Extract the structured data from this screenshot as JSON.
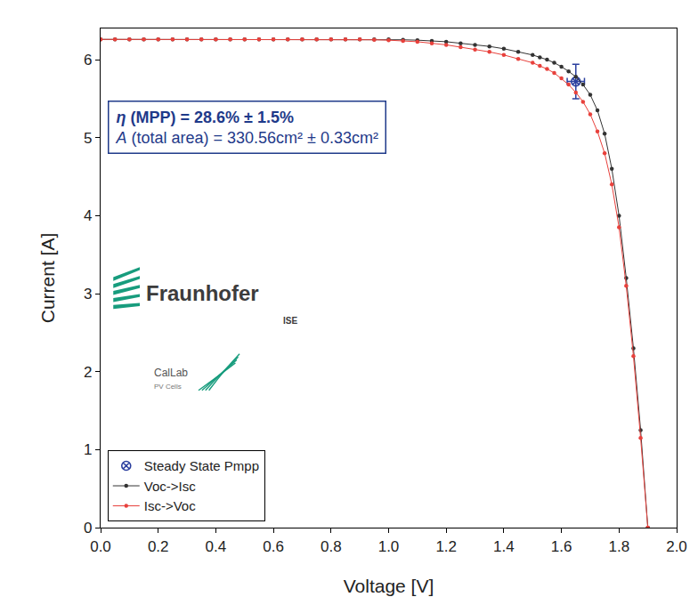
{
  "chart_data": {
    "type": "line",
    "x_label": "Voltage [V]",
    "y_label": "Current [A]",
    "xlim": [
      0,
      2.0
    ],
    "ylim": [
      0,
      6.4
    ],
    "xticks": [
      {
        "value": 0,
        "label": "0.0"
      },
      0.2,
      0.4,
      0.6,
      0.8,
      {
        "value": 1,
        "label": "1.0"
      },
      1.2,
      1.4,
      1.6,
      1.8,
      {
        "value": 2,
        "label": "2.0"
      }
    ],
    "yticks": [
      0,
      1,
      2,
      3,
      4,
      5,
      6
    ],
    "grid": false,
    "legend": "lower left",
    "x": [
      0,
      0.05,
      0.1,
      0.15,
      0.2,
      0.25,
      0.3,
      0.35,
      0.4,
      0.45,
      0.5,
      0.55,
      0.6,
      0.65,
      0.7,
      0.75,
      0.8,
      0.85,
      0.9,
      0.95,
      1.0,
      1.05,
      1.1,
      1.15,
      1.2,
      1.25,
      1.3,
      1.35,
      1.4,
      1.45,
      1.5,
      1.525,
      1.55,
      1.575,
      1.6,
      1.625,
      1.65,
      1.675,
      1.7,
      1.725,
      1.75,
      1.775,
      1.8,
      1.825,
      1.85,
      1.875,
      1.9
    ],
    "series": [
      {
        "name": "Steady State Pmpp",
        "type": "scatter",
        "color": "#2b3f9e",
        "marker": "circle-x-open",
        "x": [
          1.65
        ],
        "values": [
          5.72
        ],
        "error_x": [
          0.03
        ],
        "error_y": [
          0.22
        ]
      },
      {
        "name": "Voc->Isc",
        "type": "line",
        "color": "#333333",
        "marker": "circle",
        "line_style": "solid",
        "values": [
          6.26,
          6.26,
          6.26,
          6.26,
          6.26,
          6.26,
          6.26,
          6.26,
          6.26,
          6.26,
          6.26,
          6.26,
          6.26,
          6.26,
          6.26,
          6.26,
          6.26,
          6.26,
          6.26,
          6.26,
          6.26,
          6.255,
          6.25,
          6.24,
          6.23,
          6.21,
          6.19,
          6.17,
          6.14,
          6.1,
          6.06,
          6.03,
          6.0,
          5.96,
          5.91,
          5.85,
          5.78,
          5.68,
          5.55,
          5.35,
          5.05,
          4.6,
          4.0,
          3.2,
          2.3,
          1.25,
          0.0
        ]
      },
      {
        "name": "Isc->Voc",
        "type": "line",
        "color": "#e8413c",
        "marker": "circle",
        "line_style": "solid",
        "values": [
          6.26,
          6.26,
          6.26,
          6.26,
          6.26,
          6.26,
          6.26,
          6.26,
          6.26,
          6.26,
          6.26,
          6.26,
          6.26,
          6.26,
          6.26,
          6.26,
          6.26,
          6.26,
          6.26,
          6.255,
          6.25,
          6.24,
          6.23,
          6.21,
          6.19,
          6.16,
          6.13,
          6.1,
          6.06,
          6.01,
          5.96,
          5.92,
          5.88,
          5.83,
          5.76,
          5.68,
          5.58,
          5.46,
          5.3,
          5.08,
          4.8,
          4.4,
          3.85,
          3.1,
          2.2,
          1.15,
          0.0
        ]
      }
    ],
    "annotations": [
      {
        "text": "η (MPP) = 28.6% ± 1.5%"
      },
      {
        "text": "A (total area) = 330.56cm² ± 0.33cm²"
      },
      {
        "text": "Fraunhofer"
      },
      {
        "text": "ISE"
      },
      {
        "text": "CalLab"
      },
      {
        "text": "PV Cells"
      }
    ]
  }
}
